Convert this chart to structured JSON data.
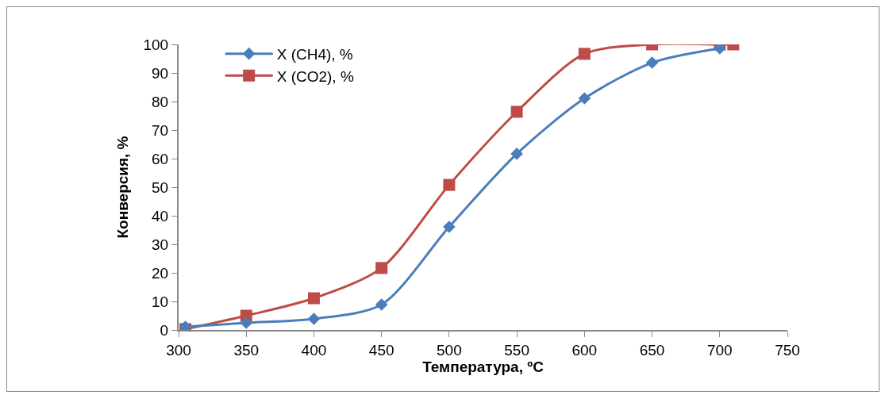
{
  "chart_data": {
    "type": "line",
    "xlabel": "Температура, ºC",
    "ylabel": "Конверсия, %",
    "xlim": [
      300,
      750
    ],
    "xticks": [
      300,
      350,
      400,
      450,
      500,
      550,
      600,
      650,
      700,
      750
    ],
    "ylim": [
      0,
      100
    ],
    "yticks": [
      0,
      10,
      20,
      30,
      40,
      50,
      60,
      70,
      80,
      90,
      100
    ],
    "grid": false,
    "legend": "top left",
    "line_style": "solid",
    "series": [
      {
        "name": "X (CH4), %",
        "color": "#4a7ebb",
        "marker": "diamond",
        "x": [
          305,
          350,
          400,
          450,
          500,
          550,
          600,
          650,
          700
        ],
        "values": [
          1.1,
          2.5,
          3.9,
          8.9,
          36.1,
          61.7,
          81.1,
          93.6,
          98.6
        ]
      },
      {
        "name": "X (CO2), %",
        "color": "#be4b48",
        "marker": "square",
        "x": [
          305,
          350,
          400,
          450,
          500,
          550,
          600,
          650,
          700,
          710
        ],
        "values": [
          0.3,
          5,
          11.1,
          21.7,
          50.8,
          76.4,
          96.7,
          100,
          100,
          100
        ]
      }
    ]
  }
}
